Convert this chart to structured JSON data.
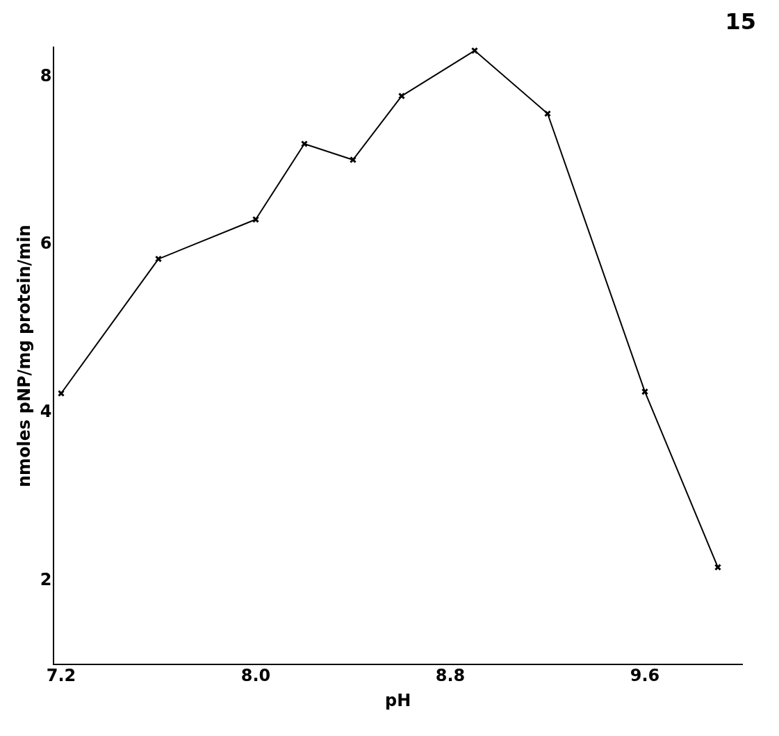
{
  "chart_data": {
    "type": "line",
    "xlabel": "pH",
    "ylabel": "nmoles pNP/mg protein/min",
    "x": [
      7.2,
      7.6,
      8.0,
      8.2,
      8.4,
      8.6,
      8.9,
      9.2,
      9.6,
      9.9
    ],
    "series": [
      {
        "color": "#000000",
        "values": [
          4.23,
          5.83,
          6.3,
          7.2,
          7.01,
          7.77,
          8.31,
          7.56,
          4.25,
          2.16
        ]
      }
    ],
    "xlim": [
      7.17,
      10.0
    ],
    "xticks": [
      7.2,
      {
        "value": 8,
        "label": "8.0"
      },
      8.8,
      9.6
    ],
    "ylim": [
      1.0,
      8.35
    ],
    "yticks": [
      2,
      4,
      6,
      8
    ],
    "grid": false,
    "legend": false,
    "marker": "cross",
    "line_style": "solid",
    "annotations": [
      "15"
    ]
  }
}
